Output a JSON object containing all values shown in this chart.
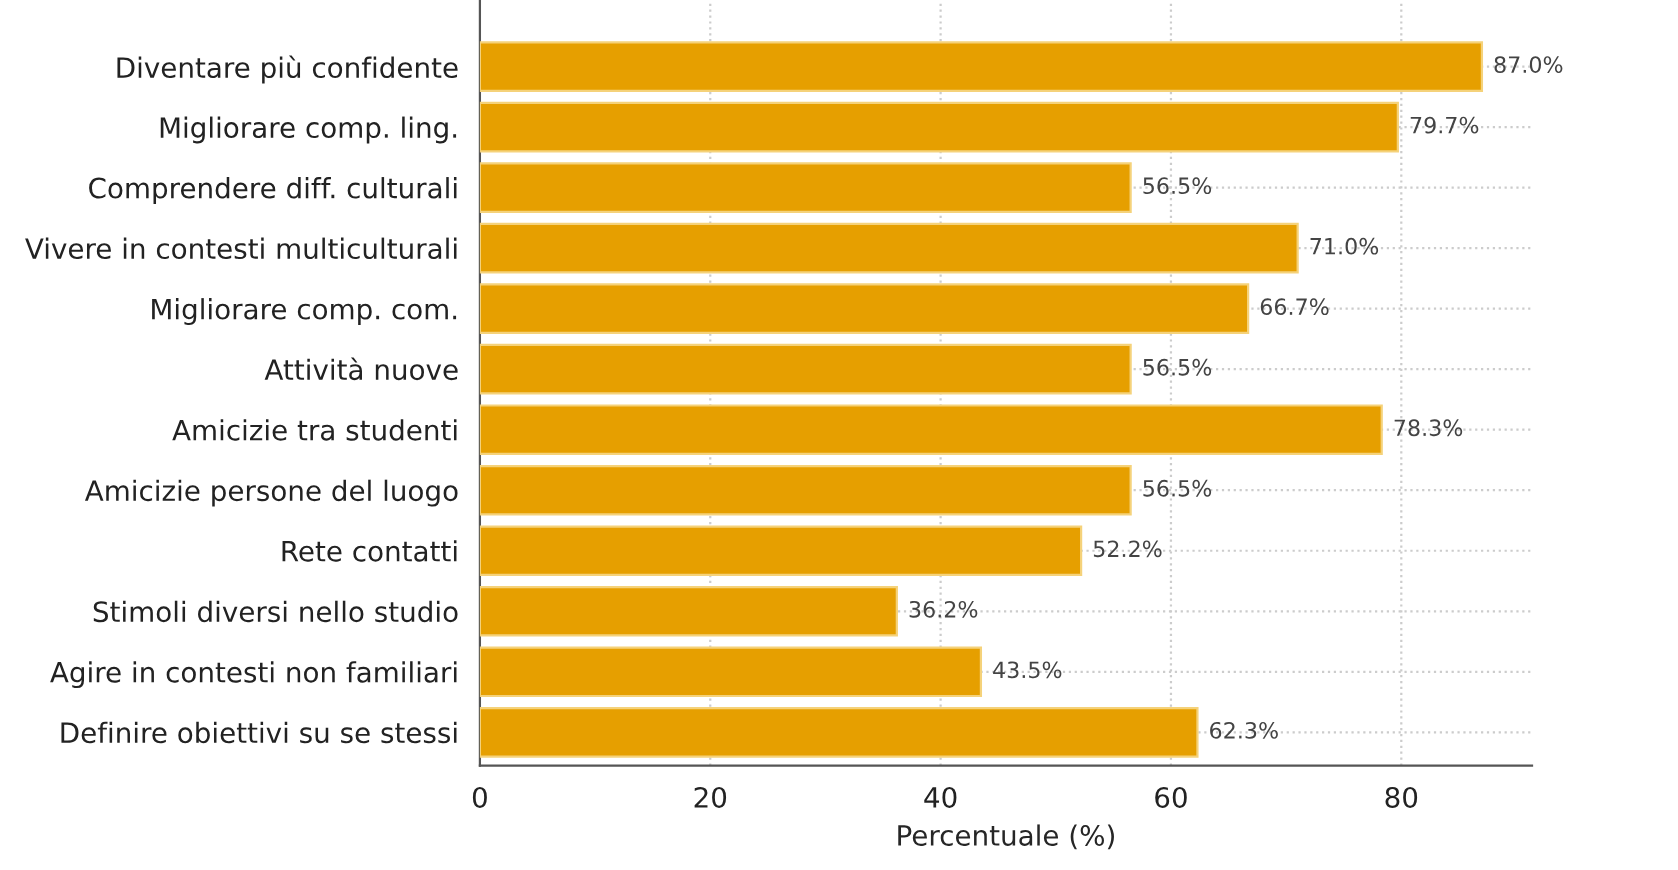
{
  "chart_data": {
    "type": "bar",
    "orientation": "horizontal",
    "xlabel": "Percentuale (%)",
    "categories": [
      "Diventare più confidente",
      "Migliorare comp. ling.",
      "Comprendere diff. culturali",
      "Vivere in contesti multiculturali",
      "Migliorare comp. com.",
      "Attività nuove",
      "Amicizie tra studenti",
      "Amicizie persone del luogo",
      "Rete contatti",
      "Stimoli diversi nello studio",
      "Agire in contesti non familiari",
      "Definire obiettivi su se stessi"
    ],
    "values": [
      87.0,
      79.7,
      56.5,
      71.0,
      66.7,
      56.5,
      78.3,
      56.5,
      52.2,
      36.2,
      43.5,
      62.3
    ],
    "value_labels": [
      "87.0%",
      "79.7%",
      "56.5%",
      "71.0%",
      "66.7%",
      "56.5%",
      "78.3%",
      "56.5%",
      "52.2%",
      "36.2%",
      "43.5%",
      "62.3%"
    ],
    "color": "#e69f00",
    "xlim": [
      0,
      91.35
    ],
    "xticks": [
      0,
      20,
      40,
      60,
      80
    ],
    "grid": true
  }
}
